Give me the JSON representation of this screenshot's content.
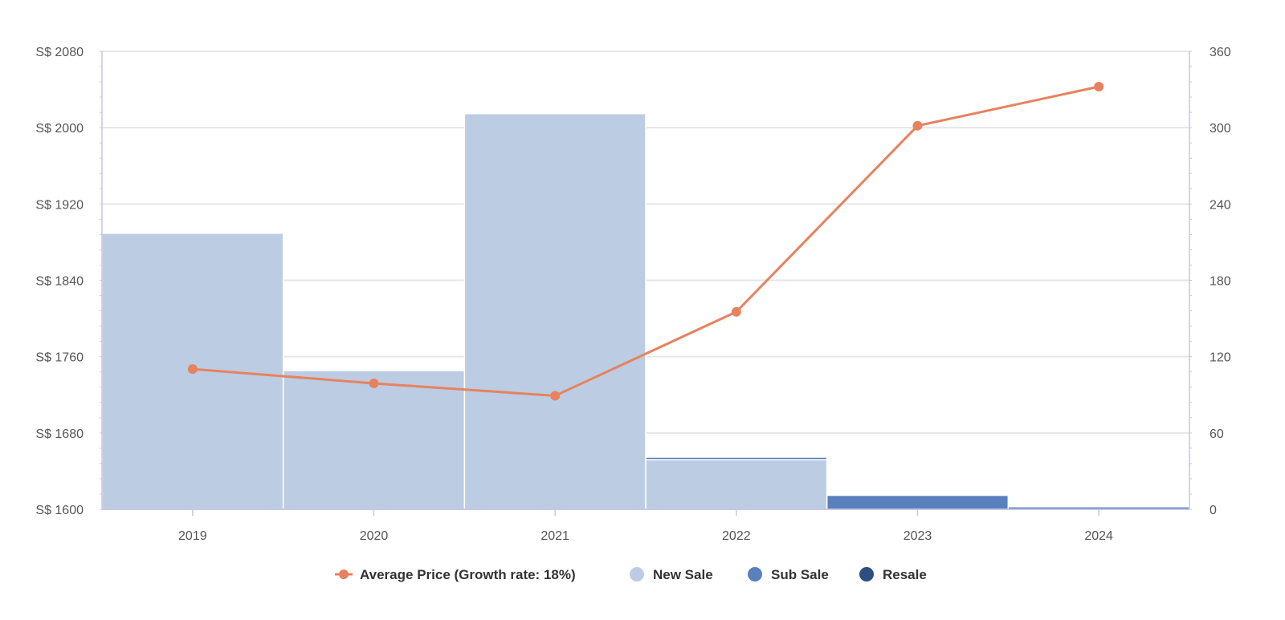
{
  "chart_data": {
    "type": "bar",
    "categories": [
      "2019",
      "2020",
      "2021",
      "2022",
      "2023",
      "2024"
    ],
    "left_axis": {
      "ticks": [
        "S$ 1600",
        "S$ 1680",
        "S$ 1760",
        "S$ 1840",
        "S$ 1920",
        "S$ 2000",
        "S$ 2080"
      ],
      "range": [
        1600,
        2080
      ]
    },
    "right_axis": {
      "ticks": [
        "0",
        "60",
        "120",
        "180",
        "240",
        "300",
        "360"
      ],
      "range": [
        0,
        360
      ]
    },
    "stacked": true,
    "series": [
      {
        "name": "Average Price (Growth rate: 18%)",
        "type": "line",
        "axis": "left",
        "color": "#e8825e",
        "values": [
          1747,
          1732,
          1719,
          1807,
          2002,
          2043
        ]
      },
      {
        "name": "New Sale",
        "type": "bar",
        "axis": "right",
        "color": "#bccce3",
        "values": [
          217,
          109,
          311,
          39,
          0,
          0
        ]
      },
      {
        "name": "Sub Sale",
        "type": "bar",
        "axis": "right",
        "color": "#5a80bd",
        "values": [
          0,
          0,
          0,
          2,
          11,
          2
        ]
      },
      {
        "name": "Resale",
        "type": "bar",
        "axis": "right",
        "color": "#2d4e7e",
        "values": [
          0,
          0,
          0,
          0,
          0,
          0
        ]
      }
    ],
    "grid": true,
    "legend_position": "bottom-center"
  }
}
